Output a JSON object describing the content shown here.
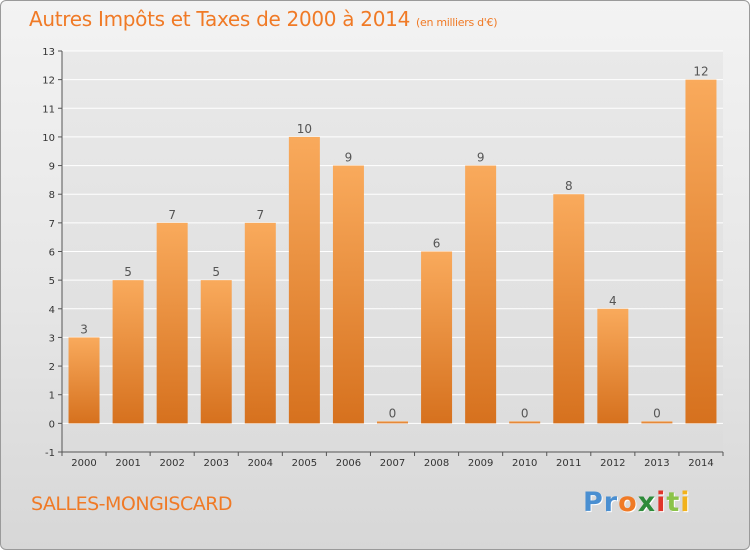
{
  "title": "Autres Impôts et Taxes de 2000 à 2014",
  "unit": "(en milliers d'€)",
  "commune": "SALLES-MONGISCARD",
  "logo": {
    "letters": [
      "P",
      "r",
      "o",
      "x",
      "i",
      "t",
      "i"
    ],
    "colors": [
      "#4a8fd1",
      "#4a8fd1",
      "#f07a26",
      "#2e8b3a",
      "#e0352b",
      "#8bc34a",
      "#f2b21b"
    ]
  },
  "colors": {
    "accent": "#f07a26",
    "bar_top": "#f8a85a",
    "bar_bottom": "#d8731f"
  },
  "chart_data": {
    "type": "bar",
    "title": "Autres Impôts et Taxes de 2000 à 2014",
    "categories": [
      "2000",
      "2001",
      "2002",
      "2003",
      "2004",
      "2005",
      "2006",
      "2007",
      "2008",
      "2009",
      "2010",
      "2011",
      "2012",
      "2013",
      "2014"
    ],
    "values": [
      3,
      5,
      7,
      5,
      7,
      10,
      9,
      0,
      6,
      9,
      0,
      8,
      4,
      0,
      12
    ],
    "ylim": [
      -1,
      13
    ],
    "yticks": [
      -1,
      0,
      1,
      2,
      3,
      4,
      5,
      6,
      7,
      8,
      9,
      10,
      11,
      12,
      13
    ],
    "grid": true,
    "xlabel": "",
    "ylabel": ""
  }
}
